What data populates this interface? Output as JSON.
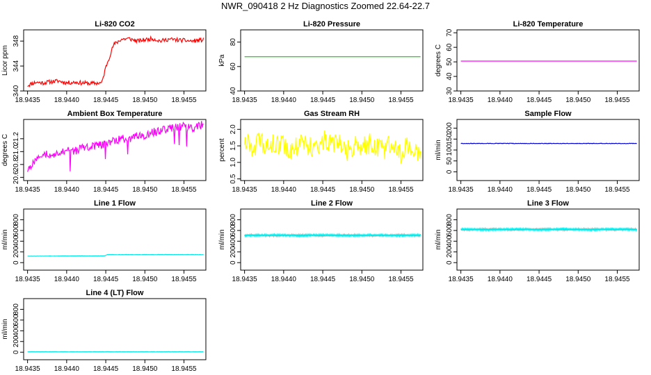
{
  "title": "NWR_090418  2 Hz Diagnostics Zoomed 22.64-22.7",
  "chart_data": [
    {
      "type": "line",
      "title": "Li-820 CO2",
      "ylabel": "Licor ppm",
      "xlim": [
        18.94345,
        18.94578
      ],
      "x_ticks": [
        "18.9435",
        "18.9440",
        "18.9445",
        "18.9450",
        "18.9455"
      ],
      "ylim": [
        340,
        349.8
      ],
      "y_ticks": [
        "340",
        "344",
        "348"
      ],
      "series": [
        {
          "color": "#ff0000",
          "x": [
            18.9435,
            18.9436,
            18.9437,
            18.9438,
            18.9439,
            18.944,
            18.9441,
            18.9442,
            18.9443,
            18.94445,
            18.9445,
            18.9446,
            18.9447,
            18.9448,
            18.9449,
            18.945,
            18.9451,
            18.9452,
            18.9453,
            18.9454,
            18.9455,
            18.9456,
            18.94575
          ],
          "y": [
            340.9,
            341.4,
            341.3,
            341.5,
            341.6,
            341.3,
            341.4,
            341.3,
            341.2,
            341.3,
            343.8,
            347.4,
            348.3,
            348.4,
            348.0,
            348.2,
            348.4,
            348.0,
            348.3,
            348.2,
            348.1,
            348.0,
            348.2
          ]
        }
      ]
    },
    {
      "type": "line",
      "title": "Li-820 Pressure",
      "ylabel": "kPa",
      "xlim": [
        18.94345,
        18.94578
      ],
      "x_ticks": [
        "18.9435",
        "18.9440",
        "18.9445",
        "18.9450",
        "18.9455"
      ],
      "ylim": [
        40,
        90
      ],
      "y_ticks": [
        "40",
        "60",
        "80"
      ],
      "series": [
        {
          "color": "#00cc00",
          "x": [
            18.9435,
            18.94575
          ],
          "y": [
            68,
            68
          ]
        }
      ]
    },
    {
      "type": "line",
      "title": "Li-820 Temperature",
      "ylabel": "degrees C",
      "xlim": [
        18.94345,
        18.94578
      ],
      "x_ticks": [
        "18.9435",
        "18.9440",
        "18.9445",
        "18.9450",
        "18.9455"
      ],
      "ylim": [
        30,
        72
      ],
      "y_ticks": [
        "30",
        "40",
        "50",
        "60",
        "70"
      ],
      "series": [
        {
          "color": "#ff00ff",
          "x": [
            18.9435,
            18.94575
          ],
          "y": [
            50.5,
            50.5
          ]
        }
      ]
    },
    {
      "type": "line",
      "title": "Ambient Box Temperature",
      "ylabel": "degrees C",
      "xlim": [
        18.94345,
        18.94578
      ],
      "x_ticks": [
        "18.9435",
        "18.9440",
        "18.9445",
        "18.9450",
        "18.9455"
      ],
      "ylim": [
        20.55,
        21.5
      ],
      "y_ticks": [
        "20.6",
        "20.8",
        "21.0",
        "21.2"
      ],
      "series": [
        {
          "color": "#ff00ff",
          "x": [
            18.9435,
            18.9436,
            18.9437,
            18.9438,
            18.9439,
            18.944,
            18.9441,
            18.9442,
            18.9443,
            18.9444,
            18.9445,
            18.9446,
            18.9447,
            18.9448,
            18.9449,
            18.945,
            18.9451,
            18.9452,
            18.9453,
            18.9454,
            18.9455,
            18.9456,
            18.94575
          ],
          "y": [
            20.72,
            20.86,
            20.94,
            20.98,
            20.96,
            21.02,
            21.0,
            21.06,
            21.08,
            21.1,
            21.12,
            21.16,
            21.2,
            21.18,
            21.24,
            21.26,
            21.3,
            21.32,
            21.35,
            21.38,
            21.4,
            21.36,
            21.42
          ]
        }
      ]
    },
    {
      "type": "line",
      "title": "Gas Stream RH",
      "ylabel": "percent",
      "xlim": [
        18.94345,
        18.94578
      ],
      "x_ticks": [
        "18.9435",
        "18.9440",
        "18.9445",
        "18.9450",
        "18.9455"
      ],
      "ylim": [
        0.45,
        2.3
      ],
      "y_ticks": [
        "0.5",
        "1.0",
        "1.5",
        "2.0"
      ],
      "series": [
        {
          "color": "#ffff00",
          "x": [
            18.9435,
            18.9436,
            18.9437,
            18.9438,
            18.9439,
            18.944,
            18.9441,
            18.9442,
            18.9443,
            18.9444,
            18.9445,
            18.9446,
            18.9447,
            18.9448,
            18.9449,
            18.945,
            18.9451,
            18.9452,
            18.9453,
            18.9454,
            18.9455,
            18.9456,
            18.94575
          ],
          "y": [
            1.7,
            1.5,
            1.6,
            1.4,
            1.6,
            1.5,
            1.3,
            1.6,
            1.5,
            1.4,
            1.7,
            1.5,
            1.6,
            1.3,
            1.5,
            1.4,
            1.6,
            1.5,
            1.4,
            1.6,
            1.3,
            1.5,
            1.3
          ]
        }
      ]
    },
    {
      "type": "line",
      "title": "Sample Flow",
      "ylabel": "ml/min",
      "xlim": [
        18.94345,
        18.94578
      ],
      "x_ticks": [
        "18.9435",
        "18.9440",
        "18.9445",
        "18.9450",
        "18.9455"
      ],
      "ylim": [
        -40,
        240
      ],
      "y_ticks": [
        "0",
        "50",
        "100",
        "150",
        "200"
      ],
      "series": [
        {
          "color": "#0000cc",
          "x": [
            18.9435,
            18.94575
          ],
          "y": [
            130,
            130
          ]
        }
      ]
    },
    {
      "type": "line",
      "title": "Line 1 Flow",
      "ylabel": "ml/min",
      "xlim": [
        18.94345,
        18.94578
      ],
      "x_ticks": [
        "18.9435",
        "18.9440",
        "18.9445",
        "18.9450",
        "18.9455"
      ],
      "ylim": [
        -140,
        1000
      ],
      "y_ticks": [
        "0",
        "200",
        "400",
        "600",
        "800"
      ],
      "series": [
        {
          "color": "#00e5e5",
          "x": [
            18.9435,
            18.944,
            18.94448,
            18.94452,
            18.945,
            18.94575
          ],
          "y": [
            120,
            125,
            125,
            150,
            150,
            150
          ]
        }
      ]
    },
    {
      "type": "line",
      "title": "Line 2 Flow",
      "ylabel": "ml/min",
      "xlim": [
        18.94345,
        18.94578
      ],
      "x_ticks": [
        "18.9435",
        "18.9440",
        "18.9445",
        "18.9450",
        "18.9455"
      ],
      "ylim": [
        -140,
        1000
      ],
      "y_ticks": [
        "0",
        "200",
        "400",
        "600",
        "800"
      ],
      "series": [
        {
          "color": "#00e5e5",
          "x": [
            18.9435,
            18.94575
          ],
          "y": [
            510,
            510
          ]
        }
      ]
    },
    {
      "type": "line",
      "title": "Line 3 Flow",
      "ylabel": "ml/min",
      "xlim": [
        18.94345,
        18.94578
      ],
      "x_ticks": [
        "18.9435",
        "18.9440",
        "18.9445",
        "18.9450",
        "18.9455"
      ],
      "ylim": [
        -140,
        1000
      ],
      "y_ticks": [
        "0",
        "200",
        "400",
        "600",
        "800"
      ],
      "series": [
        {
          "color": "#00e5e5",
          "x": [
            18.9435,
            18.94575
          ],
          "y": [
            620,
            620
          ]
        }
      ]
    },
    {
      "type": "line",
      "title": "Line 4 (LT) Flow",
      "ylabel": "ml/min",
      "xlim": [
        18.94345,
        18.94578
      ],
      "x_ticks": [
        "18.9435",
        "18.9440",
        "18.9445",
        "18.9450",
        "18.9455"
      ],
      "ylim": [
        -140,
        1000
      ],
      "y_ticks": [
        "0",
        "200",
        "400",
        "600",
        "800"
      ],
      "series": [
        {
          "color": "#00e5e5",
          "x": [
            18.9435,
            18.94575
          ],
          "y": [
            8,
            8
          ]
        }
      ]
    }
  ]
}
